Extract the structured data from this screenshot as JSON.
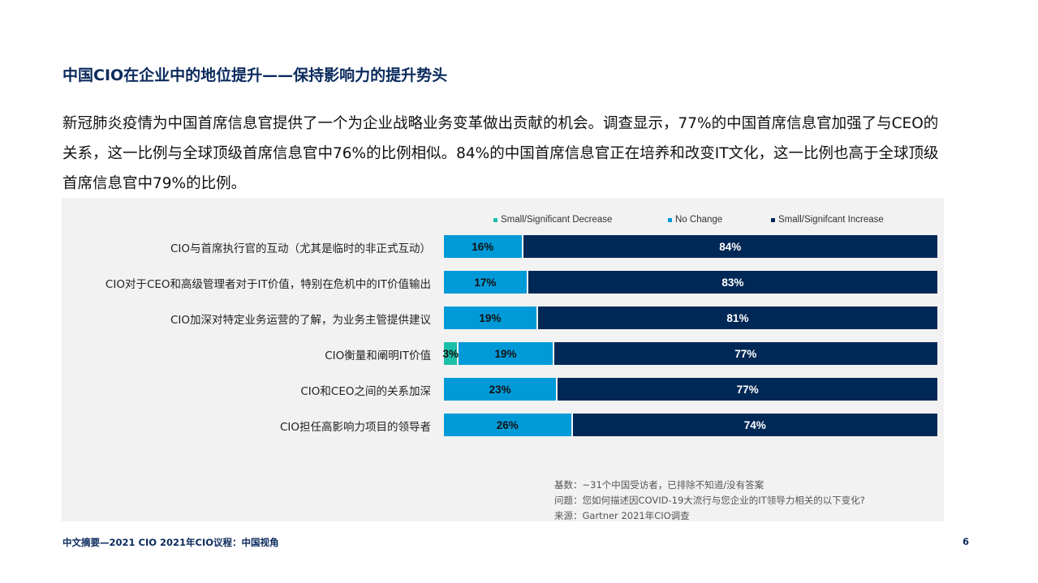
{
  "title": "中国CIO在企业中的地位提升——保持影响力的提升势头",
  "paragraph": "新冠肺炎疫情为中国首席信息官提供了一个为企业战略业务变革做出贡献的机会。调查显示，77%的中国首席信息官加强了与CEO的关系，这一比例与全球顶级首席信息官中76%的比例相似。84%的中国首席信息官正在培养和改变IT文化，这一比例也高于全球顶级首席信息官中79%的比例。",
  "chart_data": {
    "type": "bar",
    "orientation": "horizontal-stacked-100",
    "categories": [
      "CIO与首席执行官的互动（尤其是临时的非正式互动）",
      "CIO对于CEO和高级管理者对于IT价值，特别在危机中的IT价值输出",
      "CIO加深对特定业务运营的了解，为业务主管提供建议",
      "CIO衡量和阐明IT价值",
      "CIO和CEO之间的关系加深",
      "CIO担任高影响力项目的领导者"
    ],
    "series": [
      {
        "name": "Small/Significant Decrease",
        "color": "#1dbfa8",
        "values": [
          0,
          0,
          0,
          3,
          0,
          0
        ]
      },
      {
        "name": "No Change",
        "color": "#009ad8",
        "values": [
          16,
          17,
          19,
          19,
          23,
          26
        ]
      },
      {
        "name": "Small/Signifcant Increase",
        "color": "#002856",
        "values": [
          84,
          83,
          81,
          77,
          77,
          74
        ]
      }
    ],
    "legend": "top",
    "unit": "%"
  },
  "notes": [
    "基数：~31个中国受访者，已排除不知道/没有答案",
    "问题：您如何描述因COVID-19大流行与您企业的IT领导力相关的以下变化?",
    "来源：Gartner 2021年CIO调查"
  ],
  "footer": "中文摘要—2021 CIO 2021年CIO议程：中国视角",
  "page_number": "6"
}
